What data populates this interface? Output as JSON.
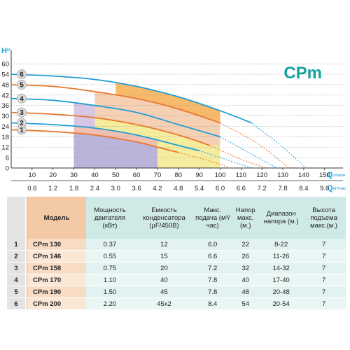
{
  "chart_data": {
    "type": "line",
    "brand_label": "CPm",
    "y_axis": {
      "unit": "H",
      "unit_sub": "м",
      "ticks": [
        0,
        6,
        12,
        18,
        24,
        30,
        36,
        42,
        48,
        54,
        60
      ],
      "range": [
        0,
        62
      ]
    },
    "x_axis_q1": {
      "unit": "Q",
      "unit_sub": "л/мин",
      "ticks": [
        10,
        20,
        30,
        40,
        50,
        60,
        70,
        80,
        90,
        100,
        110,
        120,
        130,
        140,
        150
      ],
      "range": [
        0,
        160
      ]
    },
    "x_axis_q2": {
      "unit": "Q",
      "unit_sub": "м³/час",
      "ticks": [
        "0.6",
        "1.2",
        "1.8",
        "2.4",
        "3.0",
        "3.6",
        "4.2",
        "4.8",
        "5.4",
        "6.0",
        "6.6",
        "7.2",
        "7.8",
        "8.4",
        "9.0"
      ]
    },
    "series": [
      {
        "name": "1",
        "color": "#e8772e",
        "x": [
          0,
          20,
          40,
          60,
          70,
          80
        ],
        "y": [
          22,
          21,
          19,
          15,
          12,
          9
        ],
        "ext_x": [
          80,
          95,
          105
        ],
        "ext_y": [
          9,
          4,
          0
        ]
      },
      {
        "name": "2",
        "color": "#1e9ed8",
        "x": [
          0,
          20,
          40,
          60,
          80,
          90
        ],
        "y": [
          26,
          25,
          23,
          19,
          13,
          10
        ],
        "ext_x": [
          90,
          105,
          115
        ],
        "ext_y": [
          10,
          4,
          0
        ]
      },
      {
        "name": "3",
        "color": "#e8772e",
        "x": [
          0,
          20,
          40,
          60,
          80,
          95
        ],
        "y": [
          32,
          31,
          29,
          25,
          19,
          13
        ],
        "ext_x": [
          95,
          110,
          122
        ],
        "ext_y": [
          13,
          5,
          0
        ]
      },
      {
        "name": "4",
        "color": "#1e9ed8",
        "x": [
          0,
          20,
          40,
          60,
          80,
          100
        ],
        "y": [
          40,
          39,
          36,
          32,
          25,
          18
        ],
        "ext_x": [
          100,
          115,
          127
        ],
        "ext_y": [
          18,
          8,
          0
        ]
      },
      {
        "name": "5",
        "color": "#e8772e",
        "x": [
          0,
          20,
          40,
          60,
          80,
          100
        ],
        "y": [
          48,
          47,
          44,
          40,
          34,
          26
        ],
        "ext_x": [
          100,
          118,
          133
        ],
        "ext_y": [
          26,
          14,
          0
        ]
      },
      {
        "name": "6",
        "color": "#1e9ed8",
        "x": [
          0,
          20,
          40,
          60,
          80,
          100,
          115
        ],
        "y": [
          54,
          53,
          51,
          47,
          41,
          33,
          26
        ],
        "ext_x": [
          115,
          130,
          141
        ],
        "ext_y": [
          26,
          12,
          0
        ]
      }
    ],
    "regions": [
      {
        "series": "6",
        "color": "#f7ba6a",
        "x": [
          50,
          100
        ]
      },
      {
        "series": "4",
        "color": "#d8c6e6",
        "x": [
          30,
          60
        ]
      },
      {
        "series": "5",
        "color": "#f6d0b3",
        "x": [
          40,
          100
        ]
      },
      {
        "series": "3",
        "color": "#f5ec9e",
        "x": [
          40,
          100
        ]
      },
      {
        "series": "2",
        "color": "#efbfb0",
        "x": [
          30,
          70
        ]
      },
      {
        "series": "1",
        "color": "#bcb3da",
        "x": [
          30,
          70
        ]
      }
    ]
  },
  "table": {
    "headers": {
      "model": "Модель",
      "power": "Мощность двигателя (кВт)",
      "capacitor": "Емкость конденсатора (µF/450В)",
      "flow": "Макс. подача (м³/час)",
      "head": "Напор макс. (м.)",
      "range": "Диапазон напора (м.)",
      "height": "Высота подъема макс.(м.)"
    },
    "rows": [
      {
        "num": "1",
        "model": "CPm 130",
        "power": "0.37",
        "capacitor": "12",
        "flow": "6.0",
        "head": "22",
        "range": "8-22",
        "height": "7"
      },
      {
        "num": "2",
        "model": "CPm 146",
        "power": "0.55",
        "capacitor": "15",
        "flow": "6.6",
        "head": "26",
        "range": "11-26",
        "height": "7"
      },
      {
        "num": "3",
        "model": "CPm 158",
        "power": "0.75",
        "capacitor": "20",
        "flow": "7.2",
        "head": "32",
        "range": "14-32",
        "height": "7"
      },
      {
        "num": "4",
        "model": "CPm 170",
        "power": "1.10",
        "capacitor": "40",
        "flow": "7.8",
        "head": "40",
        "range": "17-40",
        "height": "7"
      },
      {
        "num": "5",
        "model": "CPm 190",
        "power": "1.50",
        "capacitor": "45",
        "flow": "7.8",
        "head": "48",
        "range": "20-48",
        "height": "7"
      },
      {
        "num": "6",
        "model": "CPm 200",
        "power": "2.20",
        "capacitor": "45x2",
        "flow": "8.4",
        "head": "54",
        "range": "20-54",
        "height": "7"
      }
    ]
  }
}
